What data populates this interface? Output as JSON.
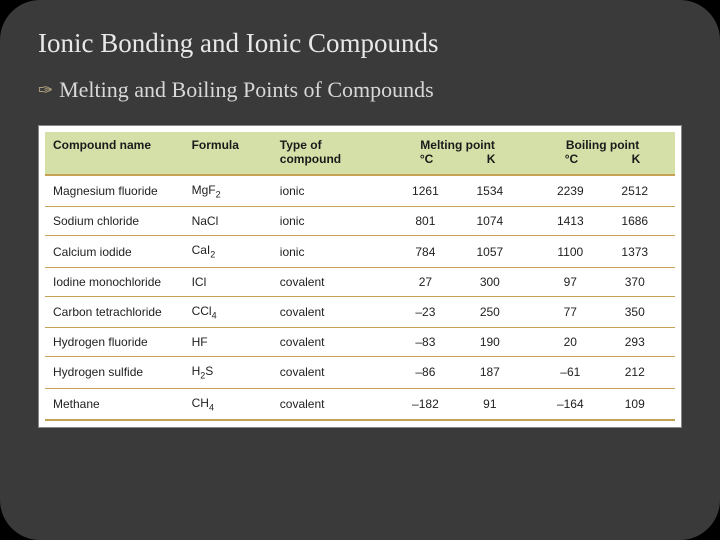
{
  "title": "Ionic Bonding and Ionic Compounds",
  "subtitle": "Melting and Boiling Points of Compounds",
  "colors": {
    "slide_bg": "#3a3a3a",
    "title_color": "#e8e8e8",
    "subtitle_color": "#d8d8d8",
    "bullet_color": "#b8a882",
    "header_bg": "#d5e0a8",
    "rule_color": "#c4a454",
    "table_bg": "#ffffff",
    "text_color": "#222222"
  },
  "table": {
    "headers": {
      "name": "Compound name",
      "formula": "Formula",
      "type": "Type of compound",
      "mp": "Melting point",
      "mp_c": "°C",
      "mp_k": "K",
      "bp": "Boiling point",
      "bp_c": "°C",
      "bp_k": "K"
    },
    "rows": [
      {
        "name": "Magnesium fluoride",
        "formula": "MgF<sub>2</sub>",
        "type": "ionic",
        "mp_c": "1261",
        "mp_k": "1534",
        "bp_c": "2239",
        "bp_k": "2512"
      },
      {
        "name": "Sodium chloride",
        "formula": "NaCl",
        "type": "ionic",
        "mp_c": "801",
        "mp_k": "1074",
        "bp_c": "1413",
        "bp_k": "1686"
      },
      {
        "name": "Calcium iodide",
        "formula": "CaI<sub>2</sub>",
        "type": "ionic",
        "mp_c": "784",
        "mp_k": "1057",
        "bp_c": "1100",
        "bp_k": "1373"
      },
      {
        "name": "Iodine monochloride",
        "formula": "ICl",
        "type": "covalent",
        "mp_c": "27",
        "mp_k": "300",
        "bp_c": "97",
        "bp_k": "370"
      },
      {
        "name": "Carbon tetrachloride",
        "formula": "CCl<sub>4</sub>",
        "type": "covalent",
        "mp_c": "–23",
        "mp_k": "250",
        "bp_c": "77",
        "bp_k": "350"
      },
      {
        "name": "Hydrogen fluoride",
        "formula": "HF",
        "type": "covalent",
        "mp_c": "–83",
        "mp_k": "190",
        "bp_c": "20",
        "bp_k": "293"
      },
      {
        "name": "Hydrogen sulfide",
        "formula": "H<sub>2</sub>S",
        "type": "covalent",
        "mp_c": "–86",
        "mp_k": "187",
        "bp_c": "–61",
        "bp_k": "212"
      },
      {
        "name": "Methane",
        "formula": "CH<sub>4</sub>",
        "type": "covalent",
        "mp_c": "–182",
        "mp_k": "91",
        "bp_c": "–164",
        "bp_k": "109"
      }
    ]
  }
}
